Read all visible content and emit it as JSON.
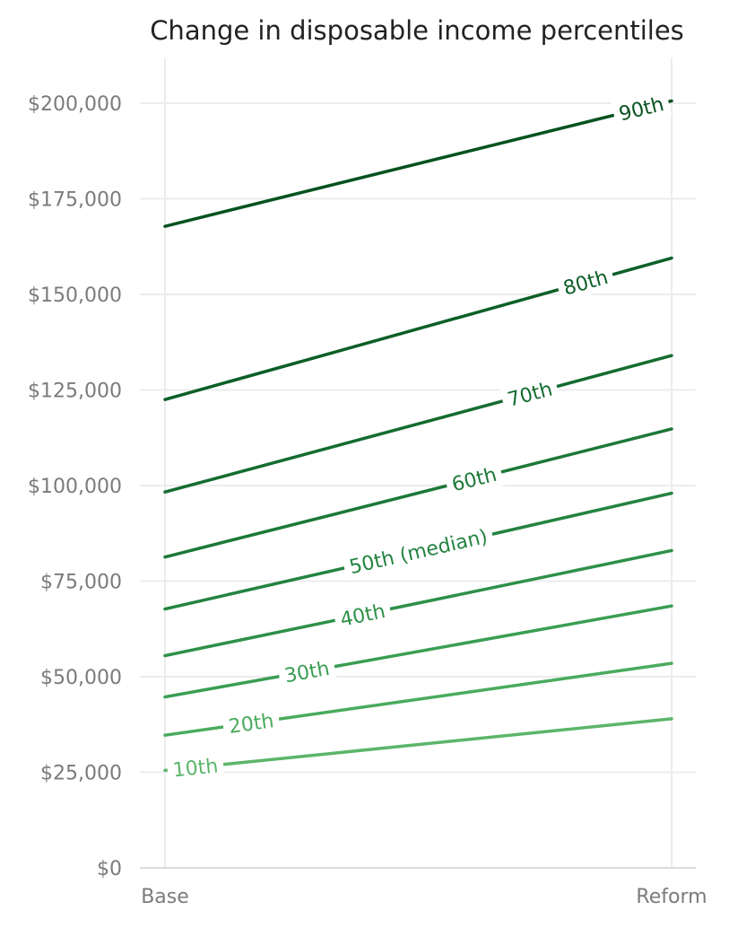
{
  "chart_data": {
    "type": "line",
    "title": "Change in disposable income percentiles",
    "xlabel": "",
    "ylabel": "",
    "categories": [
      "Base",
      "Reform"
    ],
    "ylim": [
      0,
      212000
    ],
    "yticks": [
      {
        "value": 0,
        "label": "$0"
      },
      {
        "value": 25000,
        "label": "$25,000"
      },
      {
        "value": 50000,
        "label": "$50,000"
      },
      {
        "value": 75000,
        "label": "$75,000"
      },
      {
        "value": 100000,
        "label": "$100,000"
      },
      {
        "value": 125000,
        "label": "$125,000"
      },
      {
        "value": 150000,
        "label": "$150,000"
      },
      {
        "value": 175000,
        "label": "$175,000"
      },
      {
        "value": 200000,
        "label": "$200,000"
      }
    ],
    "grid": true,
    "legend": "inline labels",
    "series": [
      {
        "name": "10th",
        "values": [
          25500,
          39000
        ],
        "color": "#5cb56a",
        "label_at": 0.06
      },
      {
        "name": "20th",
        "values": [
          34700,
          53500
        ],
        "color": "#4aab5e",
        "label_at": 0.17
      },
      {
        "name": "30th",
        "values": [
          44700,
          68500
        ],
        "color": "#3a9e53",
        "label_at": 0.28
      },
      {
        "name": "40th",
        "values": [
          55500,
          83000
        ],
        "color": "#2e9049",
        "label_at": 0.39
      },
      {
        "name": "50th (median)",
        "values": [
          67700,
          98000
        ],
        "color": "#238340",
        "label_at": 0.5
      },
      {
        "name": "60th",
        "values": [
          81300,
          114800
        ],
        "color": "#1c7838",
        "label_at": 0.61
      },
      {
        "name": "70th",
        "values": [
          98300,
          134000
        ],
        "color": "#146c30",
        "label_at": 0.72
      },
      {
        "name": "80th",
        "values": [
          122500,
          159500
        ],
        "color": "#0c5f27",
        "label_at": 0.83
      },
      {
        "name": "90th",
        "values": [
          167800,
          200600
        ],
        "color": "#06521f",
        "label_at": 0.94
      }
    ]
  }
}
